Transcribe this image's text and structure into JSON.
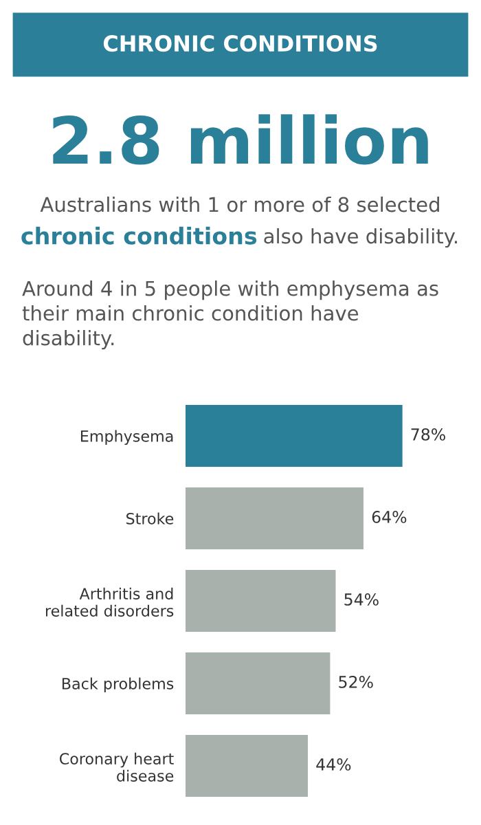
{
  "chart_data": {
    "type": "bar",
    "orientation": "horizontal",
    "title": "CHRONIC CONDITIONS",
    "annotations": [
      "2.8 million",
      "Australians with 1 or more of 8 selected",
      "chronic conditions",
      "also have disability.",
      "Around 4 in 5 people with emphysema as\ntheir main chronic condition have\ndisability."
    ],
    "categories": [
      "Emphysema",
      "Stroke",
      "Arthritis and\nrelated disorders",
      "Back problems",
      "Coronary heart\ndisease"
    ],
    "values": [
      78,
      64,
      54,
      52,
      44
    ],
    "colors": [
      "#2a7f99",
      "#a9b1ad",
      "#a9b1ad",
      "#a9b1ad",
      "#a9b1ad"
    ],
    "value_labels": [
      "78%",
      "64%",
      "54%",
      "52%",
      "44%"
    ]
  }
}
